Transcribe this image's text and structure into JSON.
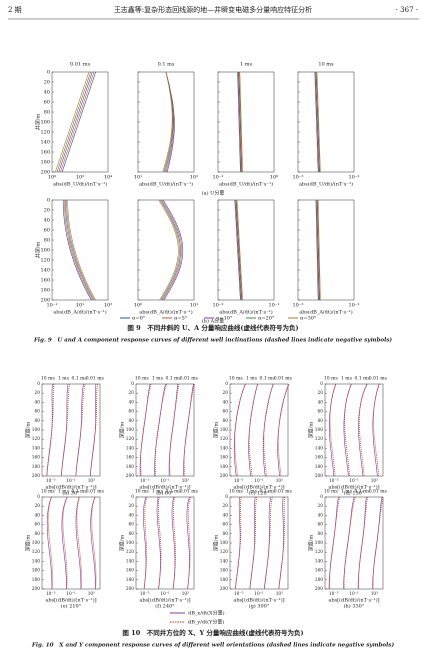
{
  "header": {
    "issue": "2 期",
    "title": "王志鑫等:复杂形态回线源的地—井瞬变电磁多分量响应特征分析",
    "page": "· 367 ·"
  },
  "fig9": {
    "panel_titles": [
      "0.01 ms",
      "0.1 ms",
      "1 ms",
      "10 ms"
    ],
    "y_label": "井深/m",
    "y_ticks": [
      "0",
      "20",
      "40",
      "60",
      "80",
      "100",
      "120",
      "140",
      "160",
      "180",
      "200"
    ],
    "row_a": {
      "x_label": "abs(dB_U/dt)/(nT·s⁻¹)",
      "x_ticks": [
        [
          "10⁰",
          "10²",
          "10⁴"
        ],
        [
          "10¹",
          "10²"
        ],
        [
          "10⁻¹",
          "10⁰"
        ],
        [
          "10⁻³",
          "10⁻²"
        ]
      ],
      "caption": "(a) U分量"
    },
    "row_b": {
      "x_label": "abs(dB_A/dt)/(nT·s⁻¹)",
      "x_ticks": [
        [
          "10⁻¹",
          "10¹",
          "10³"
        ],
        [
          "10⁰",
          "10¹"
        ],
        [
          "10⁻²",
          "10⁻¹"
        ],
        [
          "10⁻³",
          "10⁻²"
        ]
      ],
      "caption": "(b) A分量"
    },
    "legend": [
      {
        "name": "α=0°",
        "color": "#2a4fa8"
      },
      {
        "name": "α=5°",
        "color": "#d9552b"
      },
      {
        "name": "α=10°",
        "color": "#7b3fa0"
      },
      {
        "name": "α=20°",
        "color": "#2e9a4a"
      },
      {
        "name": "α=30°",
        "color": "#c9702a"
      }
    ],
    "caption_cn": "图 9　不同井斜的 U、A 分量响应曲线(虚线代表符号为负)",
    "caption_en": "Fig. 9　U and A component response curves of different well inclinations (dashed lines indicate negative symbols)"
  },
  "fig10": {
    "time_labels": [
      "10 ms",
      "1 ms",
      "0.1 ms",
      "0.01 ms"
    ],
    "y_label": "深度/m",
    "y_ticks": [
      "0",
      "20",
      "40",
      "60",
      "80",
      "100",
      "120",
      "140",
      "160",
      "180",
      "200"
    ],
    "x_ticks": [
      "10⁻⁵",
      "10⁻¹",
      "10³"
    ],
    "x_label": "abs[(dB/dt)/(nT·s⁻¹)]",
    "captions": [
      "(a) 30°",
      "(b) 60°",
      "(c) 120°",
      "(d) 150°",
      "(e) 210°",
      "(f) 240°",
      "(g) 300°",
      "(h) 330°"
    ],
    "legend": [
      {
        "name": "dB_x/dt(X分量)",
        "color": "#7b3fa0"
      },
      {
        "name": "dB_y/dt(Y分量)",
        "color": "#c0392b"
      }
    ],
    "caption_cn": "图 10　不同井方位的 X、Y 分量响应曲线(虚线代表符号为负)",
    "caption_en": "Fig. 10　X and Y component response curves of different well orientations (dashed lines indicate negative symbols)"
  }
}
